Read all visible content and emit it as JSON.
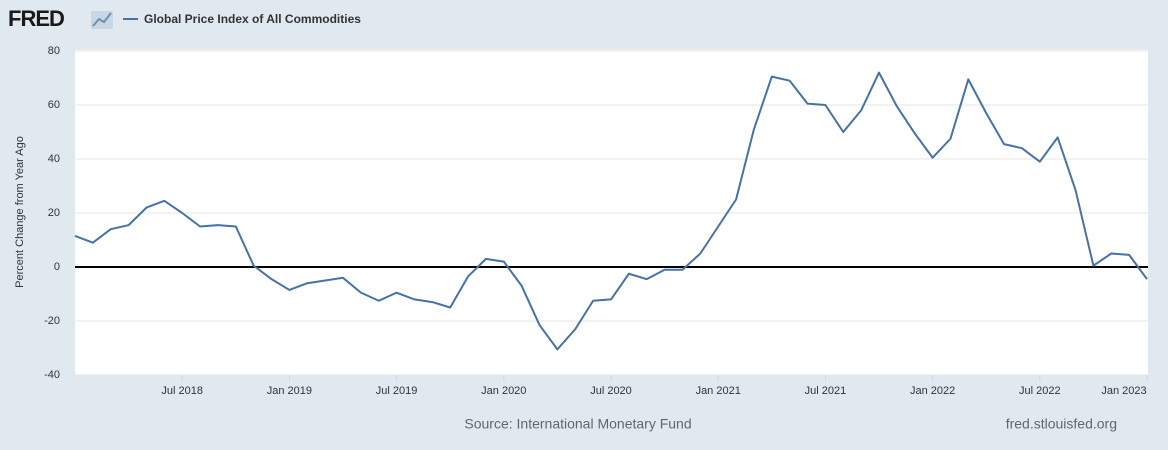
{
  "chart_data": {
    "type": "line",
    "logo": "FRED",
    "ylabel": "Percent Change from Year Ago",
    "source": "Source: International Monetary Fund",
    "credit": "fred.stlouisfed.org",
    "x": [
      "2018-01",
      "2018-02",
      "2018-03",
      "2018-04",
      "2018-05",
      "2018-06",
      "2018-07",
      "2018-08",
      "2018-09",
      "2018-10",
      "2018-11",
      "2018-12",
      "2019-01",
      "2019-02",
      "2019-03",
      "2019-04",
      "2019-05",
      "2019-06",
      "2019-07",
      "2019-08",
      "2019-09",
      "2019-10",
      "2019-11",
      "2019-12",
      "2020-01",
      "2020-02",
      "2020-03",
      "2020-04",
      "2020-05",
      "2020-06",
      "2020-07",
      "2020-08",
      "2020-09",
      "2020-10",
      "2020-11",
      "2020-12",
      "2021-01",
      "2021-02",
      "2021-03",
      "2021-04",
      "2021-05",
      "2021-06",
      "2021-07",
      "2021-08",
      "2021-09",
      "2021-10",
      "2021-11",
      "2021-12",
      "2022-01",
      "2022-02",
      "2022-03",
      "2022-04",
      "2022-05",
      "2022-06",
      "2022-07",
      "2022-08",
      "2022-09",
      "2022-10",
      "2022-11",
      "2022-12",
      "2023-01"
    ],
    "series": [
      {
        "name": "Global Price Index of All Commodities",
        "color": "#4572a7",
        "values": [
          11.5,
          9,
          14,
          15.5,
          22,
          24.5,
          20,
          15,
          15.5,
          15,
          0.5,
          -4.5,
          -8.5,
          -6,
          -5,
          -4,
          -9.5,
          -12.5,
          -9.5,
          -12,
          -13,
          -15,
          -3.5,
          3,
          2,
          -7,
          -21.5,
          -30.5,
          -23,
          -12.5,
          -12,
          -2.5,
          -4.5,
          -1,
          -1,
          5,
          15,
          25,
          51,
          70.5,
          69,
          60.5,
          60,
          50,
          58,
          72,
          59.5,
          49.5,
          40.5,
          47.5,
          69.5,
          57,
          45.5,
          44,
          39,
          48,
          28.5,
          0.5,
          5,
          4.5,
          -4.5
        ]
      }
    ],
    "xlim": [
      "2018-01",
      "2023-01"
    ],
    "xticks": [
      {
        "value": "2018-07",
        "label": "Jul 2018"
      },
      {
        "value": "2019-01",
        "label": "Jan 2019"
      },
      {
        "value": "2019-07",
        "label": "Jul 2019"
      },
      {
        "value": "2020-01",
        "label": "Jan 2020"
      },
      {
        "value": "2020-07",
        "label": "Jul 2020"
      },
      {
        "value": "2021-01",
        "label": "Jan 2021"
      },
      {
        "value": "2021-07",
        "label": "Jul 2021"
      },
      {
        "value": "2022-01",
        "label": "Jan 2022"
      },
      {
        "value": "2022-07",
        "label": "Jul 2022"
      },
      {
        "value": "2023-01",
        "label": "Jan 2023"
      }
    ],
    "ylim": [
      -40,
      80
    ],
    "yticks": [
      -40,
      -20,
      0,
      20,
      40,
      60,
      80
    ],
    "grid": true,
    "zero_line": true
  }
}
